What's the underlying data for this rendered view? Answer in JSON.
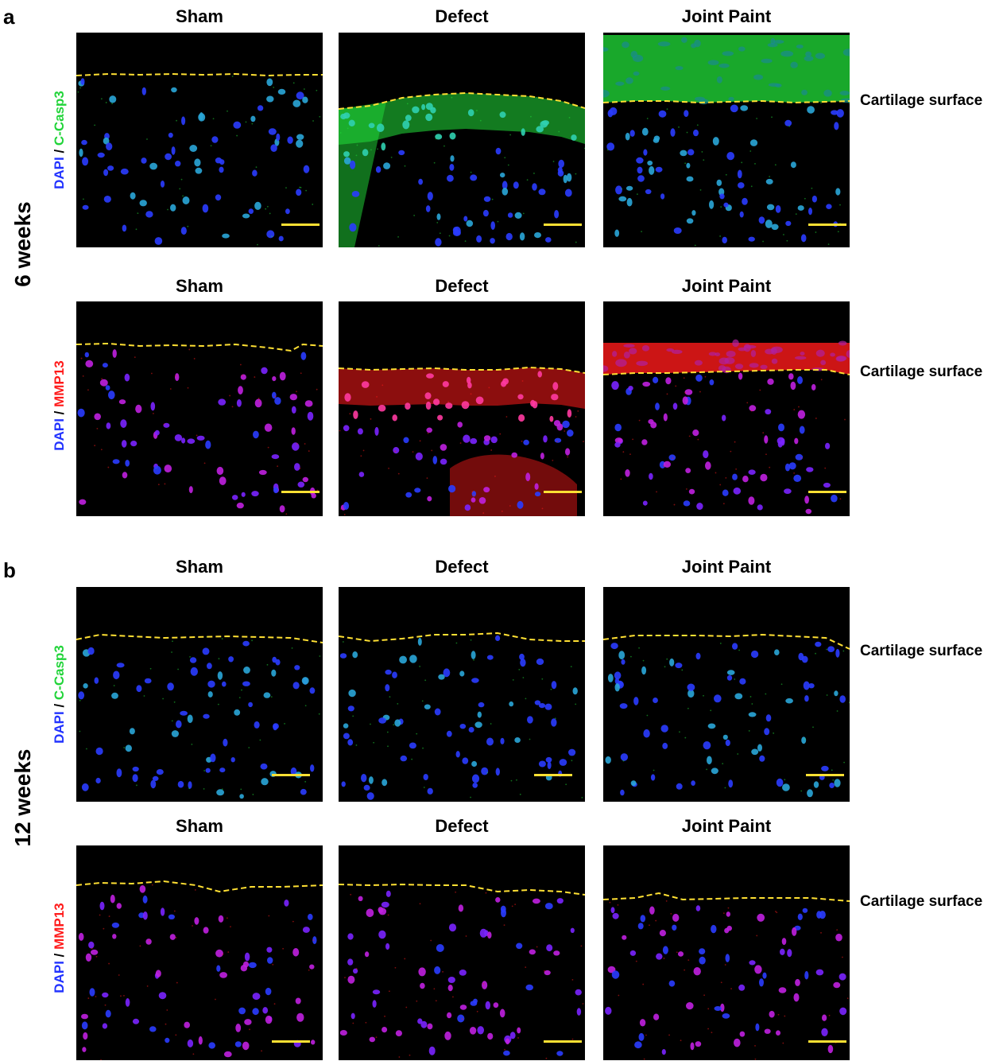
{
  "panels": {
    "a": {
      "letter": "a",
      "time": "6 weeks"
    },
    "b": {
      "letter": "b",
      "time": "12 weeks"
    }
  },
  "columns": [
    "Sham",
    "Defect",
    "Joint Paint"
  ],
  "stains": {
    "casp": {
      "dapi": "DAPI",
      "slash": " / ",
      "marker": "C-Casp3",
      "marker_color": "#22d43a"
    },
    "mmp": {
      "dapi": "DAPI",
      "slash": " / ",
      "marker": "MMP13",
      "marker_color": "#ff1a1a"
    }
  },
  "surface_label": "Cartilage surface",
  "colors": {
    "dapi": "#2233ff",
    "surface_line": "#ffe033",
    "scale_bar": "#ffe033",
    "background": "#000000"
  }
}
